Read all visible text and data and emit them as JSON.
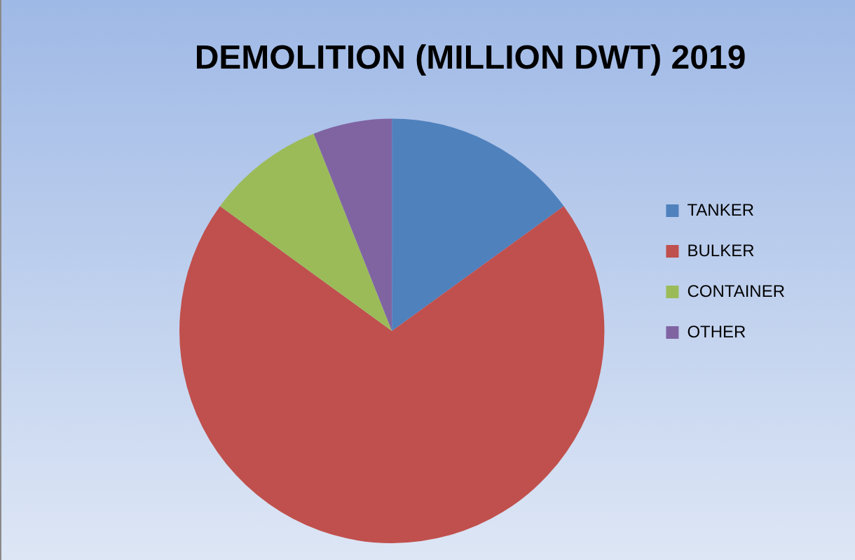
{
  "chart_data": {
    "type": "pie",
    "title": "DEMOLITION (MILLION DWT) 2019",
    "categories": [
      "TANKER",
      "BULKER",
      "CONTAINER",
      "OTHER"
    ],
    "values": [
      15,
      70,
      9,
      6
    ],
    "colors": [
      "#4f81bd",
      "#c0504d",
      "#9bbb59",
      "#8064a2"
    ],
    "legend": "right"
  }
}
